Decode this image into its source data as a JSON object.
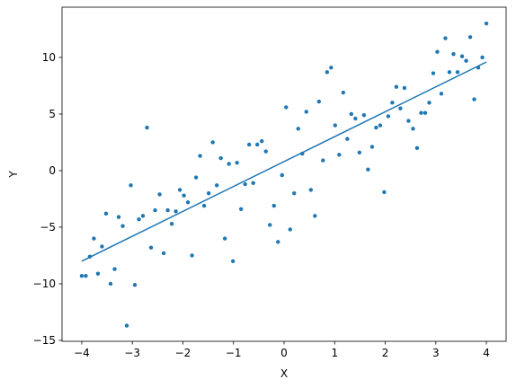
{
  "chart_data": {
    "type": "scatter",
    "xlabel": "X",
    "ylabel": "Y",
    "xlim": [
      -4.39,
      4.39
    ],
    "ylim": [
      -15.08,
      14.44
    ],
    "xticks": [
      {
        "value": -4,
        "label": "−4"
      },
      {
        "value": -3,
        "label": "−3"
      },
      {
        "value": -2,
        "label": "−2"
      },
      {
        "value": -1,
        "label": "−1"
      },
      0,
      1,
      2,
      3,
      4
    ],
    "yticks": [
      {
        "value": -15,
        "label": "−15"
      },
      {
        "value": -10,
        "label": "−10"
      },
      {
        "value": -5,
        "label": "−5"
      },
      0,
      5,
      10
    ],
    "grid": false,
    "series": [
      {
        "type": "scatter",
        "color": "#1f77b4",
        "x": [
          -4.0,
          -3.92,
          -3.84,
          -3.76,
          -3.68,
          -3.6,
          -3.52,
          -3.43,
          -3.35,
          -3.27,
          -3.19,
          -3.11,
          -3.03,
          -2.95,
          -2.87,
          -2.79,
          -2.71,
          -2.63,
          -2.55,
          -2.46,
          -2.38,
          -2.3,
          -2.22,
          -2.14,
          -2.06,
          -1.98,
          -1.9,
          -1.82,
          -1.74,
          -1.66,
          -1.58,
          -1.49,
          -1.41,
          -1.33,
          -1.25,
          -1.17,
          -1.09,
          -1.01,
          -0.93,
          -0.85,
          -0.77,
          -0.69,
          -0.61,
          -0.53,
          -0.44,
          -0.36,
          -0.28,
          -0.2,
          -0.12,
          -0.04,
          0.04,
          0.12,
          0.2,
          0.28,
          0.36,
          0.44,
          0.53,
          0.61,
          0.69,
          0.77,
          0.85,
          0.93,
          1.01,
          1.09,
          1.17,
          1.25,
          1.33,
          1.41,
          1.49,
          1.58,
          1.66,
          1.74,
          1.82,
          1.9,
          1.98,
          2.06,
          2.14,
          2.22,
          2.3,
          2.38,
          2.46,
          2.55,
          2.63,
          2.71,
          2.79,
          2.87,
          2.95,
          3.03,
          3.11,
          3.19,
          3.27,
          3.35,
          3.43,
          3.52,
          3.6,
          3.68,
          3.76,
          3.84,
          3.92,
          4.0
        ],
        "values": [
          -9.3,
          -9.3,
          -7.6,
          -6.0,
          -9.1,
          -6.7,
          -3.8,
          -10.0,
          -8.7,
          -4.1,
          -4.9,
          -13.7,
          -1.3,
          -10.1,
          -4.3,
          -4.0,
          3.8,
          -6.8,
          -3.5,
          -2.1,
          -7.3,
          -3.5,
          -4.7,
          -3.6,
          -1.7,
          -2.2,
          -2.8,
          -7.5,
          -0.6,
          1.3,
          -3.1,
          -2.0,
          2.5,
          -1.3,
          1.1,
          -6.0,
          0.6,
          -8.0,
          0.7,
          -3.4,
          -1.2,
          2.3,
          -1.1,
          2.3,
          2.6,
          1.7,
          -4.8,
          -3.1,
          -6.3,
          -0.4,
          5.6,
          -5.2,
          -2.0,
          3.7,
          1.5,
          5.2,
          -1.7,
          -4.0,
          6.1,
          0.9,
          8.7,
          9.1,
          4.0,
          1.4,
          6.9,
          2.8,
          5.0,
          4.6,
          1.6,
          4.9,
          0.1,
          2.1,
          3.8,
          4.0,
          -1.9,
          4.8,
          6.0,
          7.4,
          5.5,
          7.3,
          4.4,
          3.7,
          2.0,
          5.1,
          5.1,
          6.0,
          8.6,
          10.5,
          6.8,
          11.7,
          8.7,
          10.3,
          8.7,
          10.1,
          9.7,
          11.8,
          6.3,
          9.1,
          10.0,
          13.0
        ]
      },
      {
        "type": "line",
        "color": "#1f77b4",
        "x": [
          -4,
          4
        ],
        "values": [
          -8.0,
          9.6
        ]
      }
    ]
  }
}
